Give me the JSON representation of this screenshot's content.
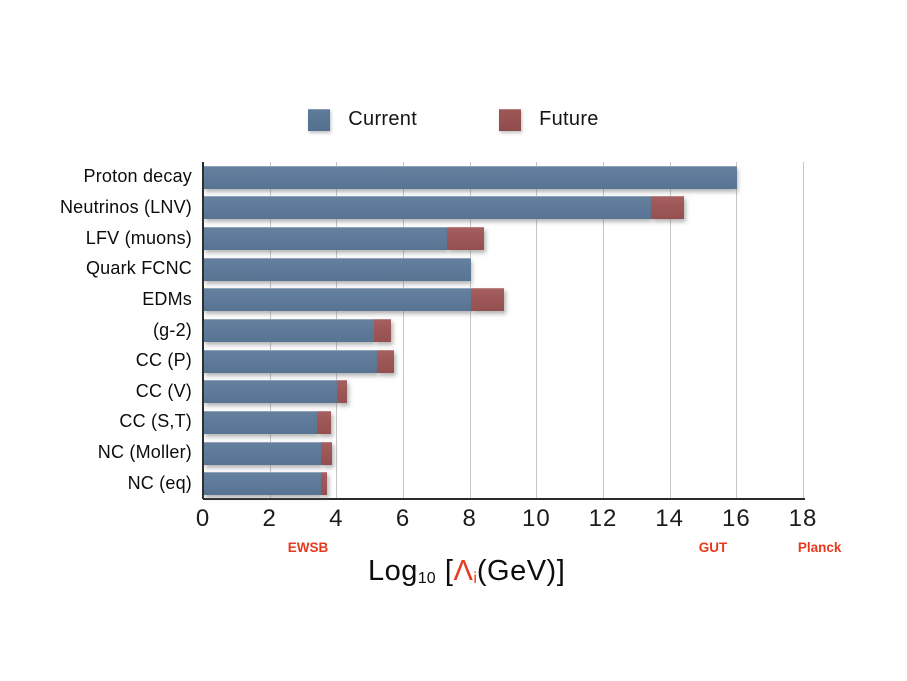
{
  "page": {
    "background": "#ffffff"
  },
  "legend": {
    "items": [
      {
        "label": "Current",
        "color": "#5f7b9b"
      },
      {
        "label": "Future",
        "color": "#9e5757"
      }
    ]
  },
  "chart_data": {
    "type": "bar",
    "orientation": "horizontal",
    "stacked": true,
    "grid": "vertical",
    "legend_position": "top-center",
    "categories": [
      "Proton decay",
      "Neutrinos (LNV)",
      "LFV (muons)",
      "Quark FCNC",
      "EDMs",
      "(g-2)",
      "CC (P)",
      "CC (V)",
      "CC (S,T)",
      "NC (Moller)",
      "NC (eq)"
    ],
    "series": [
      {
        "name": "Current",
        "color": "#5f7b9b",
        "values": [
          16.0,
          13.4,
          7.3,
          8.0,
          8.0,
          5.1,
          5.2,
          4.0,
          3.4,
          3.5,
          3.5
        ]
      },
      {
        "name": "Future",
        "color": "#9e5757",
        "values": [
          0,
          1.0,
          1.1,
          0,
          1.0,
          0.5,
          0.5,
          0.3,
          0.4,
          0.35,
          0.2
        ]
      }
    ],
    "xlim": [
      0,
      18
    ],
    "xticks": [
      0,
      2,
      4,
      6,
      8,
      10,
      12,
      14,
      16,
      18
    ],
    "xlabel": "Log10 [Lambda_i(GeV)]",
    "xlabel_parts": {
      "log": "Log",
      "log_sub": "10",
      "open": "[",
      "lambda": "Λ",
      "lambda_sub": "i",
      "rest": "(GeV)]"
    },
    "annotations": [
      {
        "label": "EWSB",
        "x": 3.15
      },
      {
        "label": "GUT",
        "x": 15.3
      },
      {
        "label": "Planck",
        "x": 18.5
      }
    ],
    "annotation_color": "#e8391e"
  }
}
